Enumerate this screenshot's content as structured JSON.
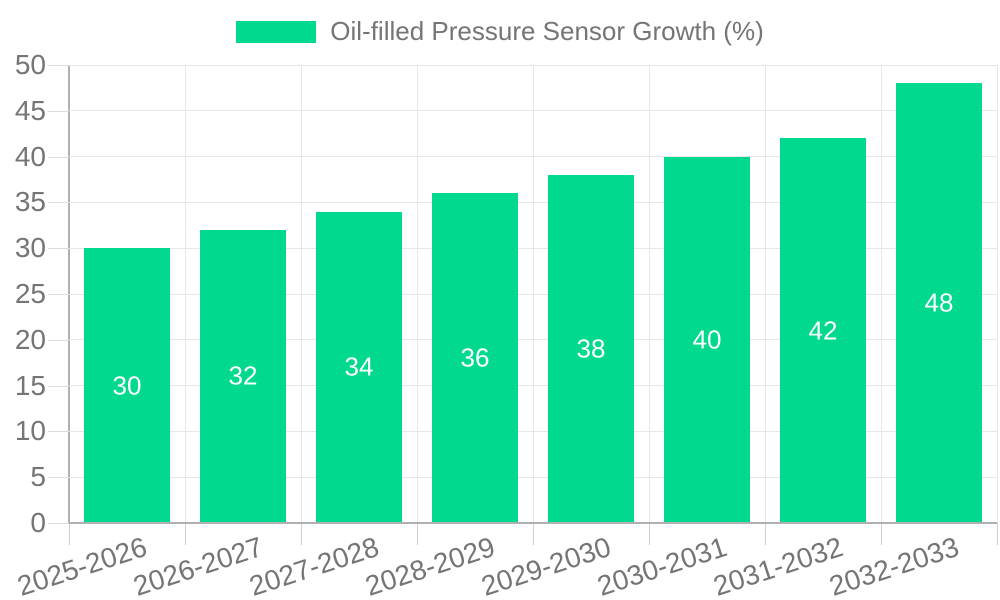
{
  "chart_data": {
    "type": "bar",
    "title": "",
    "legend": {
      "position": "top",
      "label": "Oil-filled Pressure Sensor Growth (%)"
    },
    "categories": [
      "2025-2026",
      "2026-2027",
      "2027-2028",
      "2028-2029",
      "2029-2030",
      "2030-2031",
      "2031-2032",
      "2032-2033"
    ],
    "series": [
      {
        "name": "Oil-filled Pressure Sensor Growth (%)",
        "values": [
          30,
          32,
          34,
          36,
          38,
          40,
          42,
          48
        ]
      }
    ],
    "value_labels": [
      "30",
      "32",
      "34",
      "36",
      "38",
      "40",
      "42",
      "48"
    ],
    "y_tick_labels": [
      "0",
      "5",
      "10",
      "15",
      "20",
      "25",
      "30",
      "35",
      "40",
      "45",
      "50"
    ],
    "ylim": [
      0,
      50
    ],
    "ytick_step": 5,
    "grid": true,
    "xlabel": "",
    "ylabel": "",
    "colors": {
      "bar": "#00D98E",
      "value_label": "#ffffff",
      "axis_text": "#757575",
      "gridline": "#e7e7e7",
      "axis_line": "#b0b0b0",
      "tick": "#cfcfcf",
      "background": "#ffffff"
    },
    "x_label_rotation_deg": -18
  }
}
